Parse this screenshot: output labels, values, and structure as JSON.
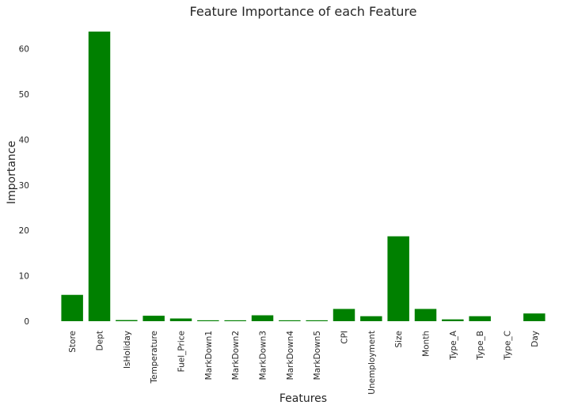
{
  "chart_data": {
    "type": "bar",
    "title": "Feature Importance of each Feature",
    "xlabel": "Features",
    "ylabel": "Importance",
    "categories": [
      "Store",
      "Dept",
      "IsHoliday",
      "Temperature",
      "Fuel_Price",
      "MarkDown1",
      "MarkDown2",
      "MarkDown3",
      "MarkDown4",
      "MarkDown5",
      "CPI",
      "Unemployment",
      "Size",
      "Month",
      "Type_A",
      "Type_B",
      "Type_C",
      "Day"
    ],
    "values": [
      5.8,
      63.8,
      0.25,
      1.2,
      0.6,
      0.2,
      0.2,
      1.3,
      0.2,
      0.2,
      2.7,
      1.1,
      18.7,
      2.7,
      0.4,
      1.1,
      0.0,
      1.7
    ],
    "ylim": [
      0,
      65
    ],
    "yticks": [
      0,
      10,
      20,
      30,
      40,
      50,
      60
    ],
    "grid": false,
    "legend": "none",
    "bar_color": "#008000"
  }
}
